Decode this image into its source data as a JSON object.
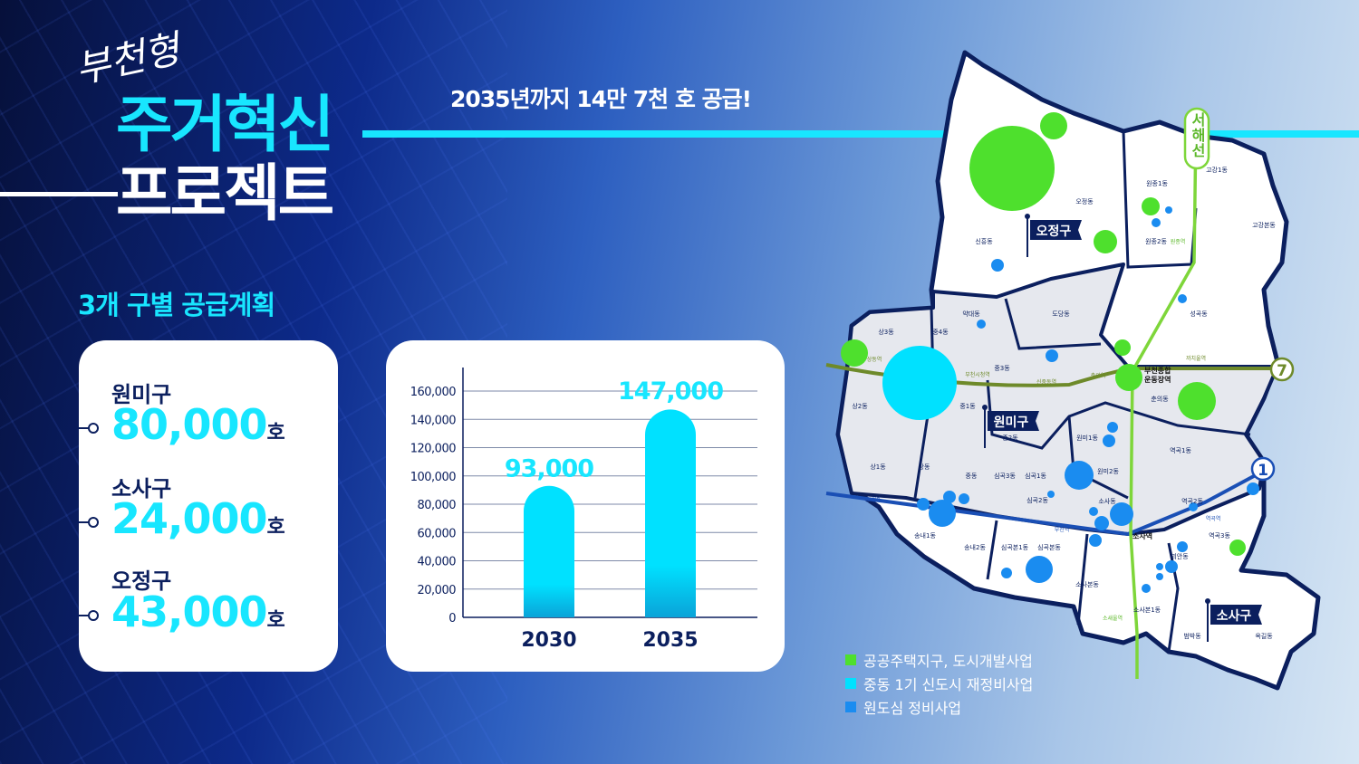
{
  "header": {
    "script_title": "부천형",
    "title_line1": "주거혁신",
    "title_line2": "프로젝트",
    "subtitle": "2035년까지 14만 7천 호 공급!"
  },
  "section_title": "3개 구별 공급계획",
  "districts": [
    {
      "name": "원미구",
      "value": "80,000",
      "unit": "호"
    },
    {
      "name": "소사구",
      "value": "24,000",
      "unit": "호"
    },
    {
      "name": "오정구",
      "value": "43,000",
      "unit": "호"
    }
  ],
  "chart_data": {
    "type": "bar",
    "categories": [
      "2030",
      "2035"
    ],
    "values": [
      93000,
      147000
    ],
    "data_labels": [
      "93,000",
      "147,000"
    ],
    "ylim": [
      0,
      160000
    ],
    "yticks": [
      "0",
      "20,000",
      "40,000",
      "60,000",
      "80,000",
      "100,000",
      "120,000",
      "140,000",
      "160,000"
    ],
    "grid": true,
    "bar_color": "#00e1ff"
  },
  "map": {
    "district_labels": [
      "오정구",
      "원미구",
      "소사구"
    ],
    "line_labels": {
      "seohae": "서해선",
      "line7": "7",
      "line1": "1"
    },
    "dongs": [
      "신흥동",
      "오정동",
      "원종1동",
      "원종2동",
      "고강1동",
      "고강본동",
      "성곡동",
      "약대동",
      "도당동",
      "상3동",
      "중4동",
      "중3동",
      "상2동",
      "중1동",
      "중2동",
      "춘의동",
      "원미1동",
      "역곡1동",
      "상1동",
      "상동",
      "중동",
      "심곡3동",
      "심곡1동",
      "원미2동",
      "심곡2동",
      "소사동",
      "역곡2동",
      "송내1동",
      "송내2동",
      "심곡본1동",
      "심곡본동",
      "소사본동",
      "괴안동",
      "역곡3동",
      "소사본1동",
      "범박동",
      "옥길동"
    ],
    "stations": [
      "상동역",
      "부천시청역",
      "신중동역",
      "춘의역",
      "부천종합",
      "운동장역",
      "까치울역",
      "원종역",
      "송내역",
      "부천역",
      "소사역",
      "역곡역",
      "소새울역"
    ],
    "colors": {
      "public_housing": "#4ee02d",
      "new_town": "#00e1ff",
      "old_town": "#1a8cf0"
    }
  },
  "legend": [
    {
      "label": "공공주택지구, 도시개발사업",
      "color": "#4ee02d"
    },
    {
      "label": "중동 1기 신도시 재정비사업",
      "color": "#00e1ff"
    },
    {
      "label": "원도심 정비사업",
      "color": "#1a8cf0"
    }
  ]
}
